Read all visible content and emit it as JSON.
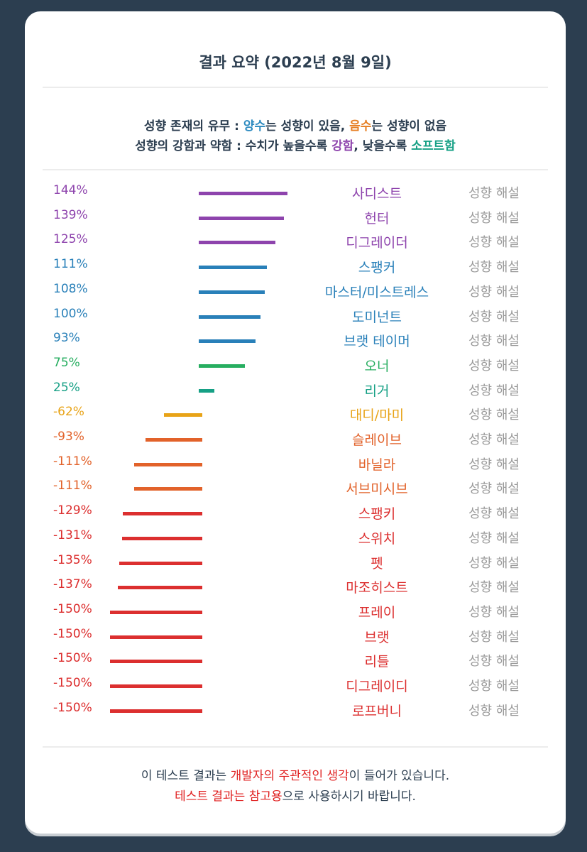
{
  "title": "결과 요약 (2022년 8월 9일)",
  "legend": {
    "line1_a": "성향 존재의 유무 : ",
    "line1_pos": "양수",
    "line1_b": "는 성향이 있음, ",
    "line1_neg": "음수",
    "line1_c": "는 성향이 없음",
    "line2_a": "성향의 강함과 약함 : 수치가 높을수록 ",
    "line2_strong": "강함",
    "line2_b": ", 낮을수록 ",
    "line2_soft": "소프트함"
  },
  "link_label": "성향 해설",
  "chart_data": {
    "type": "bar",
    "orientation": "horizontal-diverging",
    "unit": "%",
    "rows": [
      {
        "name": "사디스트",
        "value": 144,
        "label": "144%",
        "color": "#8e44ad"
      },
      {
        "name": "헌터",
        "value": 139,
        "label": "139%",
        "color": "#8e44ad"
      },
      {
        "name": "디그레이더",
        "value": 125,
        "label": "125%",
        "color": "#8e44ad"
      },
      {
        "name": "스팽커",
        "value": 111,
        "label": "111%",
        "color": "#2980b9"
      },
      {
        "name": "마스터/미스트레스",
        "value": 108,
        "label": "108%",
        "color": "#2980b9"
      },
      {
        "name": "도미넌트",
        "value": 100,
        "label": "100%",
        "color": "#2980b9"
      },
      {
        "name": "브랫 테이머",
        "value": 93,
        "label": "93%",
        "color": "#2980b9"
      },
      {
        "name": "오너",
        "value": 75,
        "label": "75%",
        "color": "#27ae60"
      },
      {
        "name": "리거",
        "value": 25,
        "label": "25%",
        "color": "#16a085"
      },
      {
        "name": "대디/마미",
        "value": -62,
        "label": "-62%",
        "color": "#e8a317"
      },
      {
        "name": "슬레이브",
        "value": -93,
        "label": "-93%",
        "color": "#e2622a"
      },
      {
        "name": "바닐라",
        "value": -111,
        "label": "-111%",
        "color": "#e2622a"
      },
      {
        "name": "서브미시브",
        "value": -111,
        "label": "-111%",
        "color": "#e2622a"
      },
      {
        "name": "스팽키",
        "value": -129,
        "label": "-129%",
        "color": "#dc2f2f"
      },
      {
        "name": "스위치",
        "value": -131,
        "label": "-131%",
        "color": "#dc2f2f"
      },
      {
        "name": "펫",
        "value": -135,
        "label": "-135%",
        "color": "#dc2f2f"
      },
      {
        "name": "마조히스트",
        "value": -137,
        "label": "-137%",
        "color": "#dc2f2f"
      },
      {
        "name": "프레이",
        "value": -150,
        "label": "-150%",
        "color": "#dc2f2f"
      },
      {
        "name": "브랫",
        "value": -150,
        "label": "-150%",
        "color": "#dc2f2f"
      },
      {
        "name": "리틀",
        "value": -150,
        "label": "-150%",
        "color": "#dc2f2f"
      },
      {
        "name": "디그레이디",
        "value": -150,
        "label": "-150%",
        "color": "#dc2f2f"
      },
      {
        "name": "로프버니",
        "value": -150,
        "label": "-150%",
        "color": "#dc2f2f"
      }
    ]
  },
  "footer": {
    "line1_a": "이 테스트 결과는 ",
    "line1_red": "개발자의 주관적인 생각",
    "line1_b": "이 들어가 있습니다.",
    "line2_red": "테스트 결과는 참고용",
    "line2_b": "으로 사용하시기 바랍니다."
  }
}
